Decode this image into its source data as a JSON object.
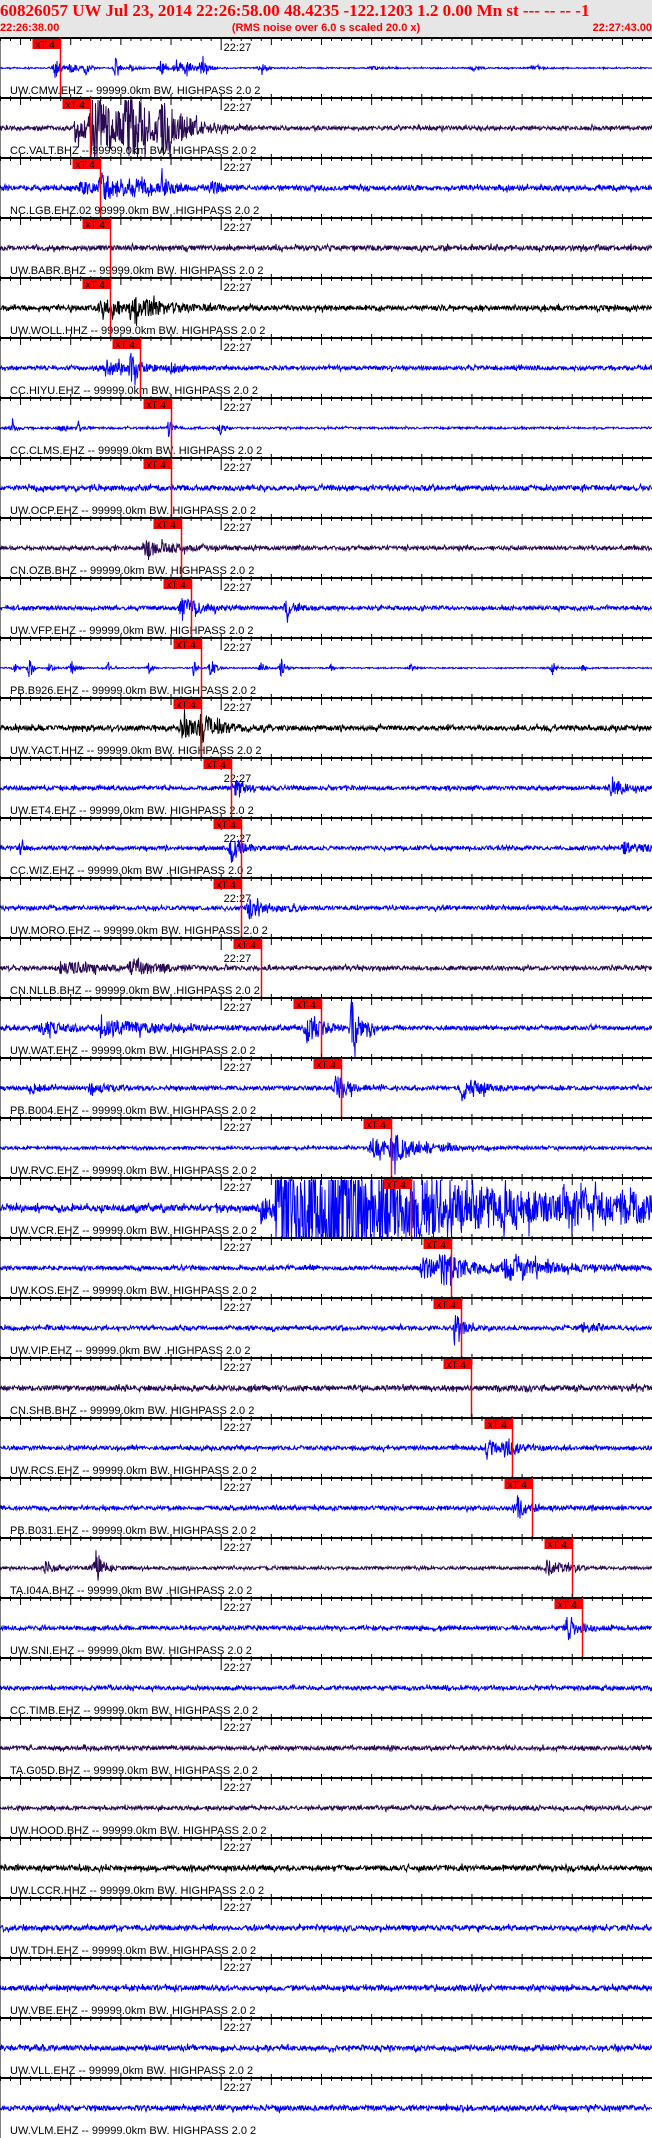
{
  "header": {
    "title": "60826057 UW Jul 23, 2014 22:26:58.00    48.4235 -122.1203  1.2 0.00 Mn st --- -- --  -1",
    "start_time": "22:26:38.00",
    "note": "(RMS noise over 6.0 s scaled 20.0 x)",
    "end_time": "22:27:43.00"
  },
  "chart_data": {
    "type": "line",
    "title": "",
    "x_range": [
      "22:26:38.00",
      "22:27:43.00"
    ],
    "x_tick_label": "22:27",
    "x_tick_time": "22:27:00",
    "pick_label": "xT 4",
    "colors": {
      "pick": "#ff0000",
      "blue": "#0000ff",
      "navy": "#2a0a55",
      "black": "#000000"
    },
    "traces": [
      {
        "label": "UW.CMW.EHZ -- 99999.0km BW. HIGHPASS  2.0  2",
        "color": "blue",
        "pick": "22:26:44",
        "noise": 0.6,
        "events": [
          [
            5.5,
            12,
            0.5
          ],
          [
            7,
            5,
            0.6
          ],
          [
            8.5,
            8,
            0.4
          ],
          [
            11.5,
            10,
            0.4
          ],
          [
            13,
            4,
            0.6
          ],
          [
            16,
            9,
            0.5
          ],
          [
            17.5,
            8,
            0.6
          ],
          [
            18.5,
            10,
            0.5
          ],
          [
            20,
            10,
            0.5
          ],
          [
            26,
            9,
            0.4
          ],
          [
            37,
            2,
            1
          ],
          [
            47,
            2,
            1
          ],
          [
            53,
            2,
            1
          ]
        ]
      },
      {
        "label": "CC.VALT.BHZ -- 99999.0km BW. HIGHPASS  2.0  2",
        "color": "navy",
        "pick": "22:26:47",
        "noise": 2,
        "events": [
          [
            7.5,
            14,
            2
          ],
          [
            9,
            34,
            3
          ],
          [
            12.5,
            34,
            2.5
          ],
          [
            16,
            20,
            2
          ]
        ]
      },
      {
        "label": "NC.LGB.EHZ.02 99999.0km BW .HIGHPASS  2.0  2",
        "color": "blue",
        "pick": "22:26:48",
        "noise": 2.5,
        "events": [
          [
            8,
            8,
            1
          ],
          [
            10,
            16,
            1.5
          ],
          [
            13,
            10,
            1
          ],
          [
            16,
            10,
            1.2
          ],
          [
            21,
            6,
            1
          ]
        ]
      },
      {
        "label": "UW.BABR.BHZ -- 99999.0km BW. HIGHPASS  2.0  2",
        "color": "navy",
        "pick": "22:26:49",
        "noise": 2.5,
        "events": []
      },
      {
        "label": "UW.WOLL.HHZ -- 99999.0km BW. HIGHPASS  2.0  2",
        "color": "black",
        "pick": "22:26:49",
        "noise": 2.5,
        "events": [
          [
            10,
            8,
            3
          ],
          [
            13,
            7,
            4
          ]
        ]
      },
      {
        "label": "CC.HIYU.EHZ -- 99999.0km BW. HIGHPASS  2.0  2",
        "color": "blue",
        "pick": "22:26:52",
        "noise": 2,
        "events": [
          [
            10.5,
            8,
            1.5
          ],
          [
            13,
            13,
            1
          ],
          [
            17,
            5,
            1
          ]
        ]
      },
      {
        "label": "CC.CLMS.EHZ -- 99999.0km BW. HIGHPASS  2.0  2",
        "color": "blue",
        "pick": "22:26:55",
        "noise": 1,
        "events": [
          [
            1.3,
            7,
            0.3
          ],
          [
            6,
            3,
            0.5
          ],
          [
            7.8,
            5,
            0.3
          ],
          [
            16.8,
            8,
            0.4
          ],
          [
            22,
            8,
            0.3
          ]
        ]
      },
      {
        "label": "UW.OCP.EHZ -- 99999.0km BW. HIGHPASS  2.0  2",
        "color": "blue",
        "pick": "22:26:55",
        "noise": 2.5,
        "events": []
      },
      {
        "label": "CN.OZB.BHZ -- 99999.0km BW. HIGHPASS  2.0  2",
        "color": "navy",
        "pick": "22:26:56",
        "noise": 2,
        "events": [
          [
            14.5,
            8,
            2.5
          ]
        ]
      },
      {
        "label": "UW.VFP.EHZ -- 99999.0km BW. HIGHPASS  2.0  2",
        "color": "blue",
        "pick": "22:26:57",
        "noise": 2,
        "events": [
          [
            18,
            13,
            1.5
          ],
          [
            28.5,
            9,
            0.8
          ]
        ]
      },
      {
        "label": "PB.B926.EHZ -- 99999.0km BW. HIGHPASS  2.0  2",
        "color": "blue",
        "pick": "22:26:58",
        "noise": 0.6,
        "events": [
          [
            1.4,
            6,
            0.3
          ],
          [
            2.9,
            10,
            0.3
          ],
          [
            4.9,
            5,
            0.3
          ],
          [
            7.1,
            10,
            0.3
          ],
          [
            10.8,
            6,
            0.3
          ],
          [
            14.8,
            7,
            0.3
          ],
          [
            19.3,
            9,
            0.3
          ],
          [
            21,
            12,
            0.4
          ],
          [
            26,
            8,
            0.3
          ],
          [
            28,
            10,
            0.4
          ],
          [
            33,
            4,
            0.3
          ],
          [
            41,
            5,
            0.3
          ],
          [
            55,
            8,
            0.4
          ],
          [
            58,
            4,
            0.3
          ]
        ]
      },
      {
        "label": "UW.YACT.HHZ -- 99999.0km BW. HIGHPASS  2.0  2",
        "color": "black",
        "pick": "22:26:58",
        "noise": 2.5,
        "events": [
          [
            18,
            10,
            2
          ],
          [
            20,
            12,
            1.5
          ]
        ]
      },
      {
        "label": "UW.ET4.EHZ -- 99999.0km BW. HIGHPASS  2.0  2",
        "color": "blue",
        "pick": "22:27:01",
        "noise": 2,
        "events": [
          [
            23.5,
            12,
            0.8
          ],
          [
            61,
            13,
            1
          ]
        ]
      },
      {
        "label": "CC.WIZ.EHZ -- 99999.0km BW .HIGHPASS  2.0  2",
        "color": "blue",
        "pick": "22:27:02",
        "noise": 2,
        "events": [
          [
            2,
            6,
            0.5
          ],
          [
            23,
            16,
            0.8
          ],
          [
            62,
            6,
            2
          ]
        ]
      },
      {
        "label": "UW.MORO.EHZ -- 99999.0km BW. HIGHPASS  2.0  2",
        "color": "blue",
        "pick": "22:27:02",
        "noise": 2,
        "events": [
          [
            24.8,
            12,
            1
          ],
          [
            29,
            6,
            0.5
          ]
        ]
      },
      {
        "label": "CN.NLLB.BHZ -- 99999.0km BW .HIGHPASS  2.0  2",
        "color": "navy",
        "pick": "22:27:04",
        "noise": 2,
        "events": [
          [
            6,
            6,
            4
          ],
          [
            13,
            6,
            3
          ]
        ]
      },
      {
        "label": "UW.WAT.EHZ -- 99999.0km BW. HIGHPASS  2.0  2",
        "color": "blue",
        "pick": "22:27:10",
        "noise": 2,
        "events": [
          [
            4,
            6,
            3
          ],
          [
            10,
            8,
            5
          ],
          [
            30.5,
            16,
            1.5
          ],
          [
            35,
            22,
            1
          ]
        ]
      },
      {
        "label": "PB.B004.EHZ -- 99999.0km BW. HIGHPASS  2.0  2",
        "color": "blue",
        "pick": "22:27:12",
        "noise": 2,
        "events": [
          [
            3,
            6,
            1
          ],
          [
            9,
            6,
            1.5
          ],
          [
            33.5,
            16,
            1
          ],
          [
            46,
            12,
            2
          ]
        ]
      },
      {
        "label": "UW.RVC.EHZ -- 99999.0km BW. HIGHPASS  2.0  2",
        "color": "blue",
        "pick": "22:27:17",
        "noise": 1.5,
        "events": [
          [
            37,
            10,
            2
          ],
          [
            39,
            12,
            3
          ]
        ]
      },
      {
        "label": "UW.VCR.EHZ -- 99999.0km BW. HIGHPASS  2.0  2",
        "color": "blue",
        "pick": "22:27:19",
        "noise": 3,
        "events": [
          [
            26,
            14,
            1
          ],
          [
            27.5,
            70,
            16
          ],
          [
            56,
            12,
            3
          ],
          [
            62,
            12,
            2
          ]
        ]
      },
      {
        "label": "UW.KOS.EHZ -- 99999.0km BW. HIGHPASS  2.0  2",
        "color": "blue",
        "pick": "22:27:23",
        "noise": 2,
        "events": [
          [
            42,
            10,
            3
          ],
          [
            44,
            15,
            2
          ],
          [
            50,
            8,
            6
          ]
        ]
      },
      {
        "label": "UW.VIP.EHZ -- 99999.0km BW .HIGHPASS  2.0  2",
        "color": "blue",
        "pick": "22:27:24",
        "noise": 2,
        "events": [
          [
            45.3,
            16,
            0.8
          ],
          [
            58,
            5,
            1
          ]
        ]
      },
      {
        "label": "CN.SHB.BHZ -- 99999.0km BW. HIGHPASS  2.0  2",
        "color": "navy",
        "pick": "22:27:25",
        "noise": 2.5,
        "events": []
      },
      {
        "label": "UW.RCS.EHZ -- 99999.0km BW. HIGHPASS  2.0  2",
        "color": "blue",
        "pick": "22:27:29",
        "noise": 2,
        "events": [
          [
            48.5,
            8,
            1.5
          ],
          [
            50.5,
            8,
            1
          ]
        ]
      },
      {
        "label": "PB.B031.EHZ -- 99999.0km BW. HIGHPASS  2.0  2",
        "color": "blue",
        "pick": "22:27:31",
        "noise": 2,
        "events": [
          [
            51.5,
            12,
            1
          ]
        ]
      },
      {
        "label": "TA.I04A.BHZ -- 99999.0km BW .HIGHPASS  2.0  2",
        "color": "navy",
        "pick": "22:27:35",
        "noise": 1.5,
        "events": [
          [
            4.5,
            6,
            1
          ],
          [
            9.5,
            16,
            0.8
          ],
          [
            54.5,
            8,
            1.5
          ]
        ]
      },
      {
        "label": "UW.SNI.EHZ -- 99999.0km BW. HIGHPASS  2.0  2",
        "color": "blue",
        "pick": "22:27:36",
        "noise": 2,
        "events": [
          [
            56.5,
            14,
            1.2
          ]
        ]
      },
      {
        "label": "CC.TIMB.EHZ -- 99999.0km BW. HIGHPASS  2.0  2",
        "color": "blue",
        "pick": "",
        "noise": 2,
        "events": []
      },
      {
        "label": "TA.G05D.BHZ -- 99999.0km BW. HIGHPASS  2.0  2",
        "color": "navy",
        "pick": "",
        "noise": 2,
        "events": []
      },
      {
        "label": "UW.HOOD.BHZ -- 99999.0km BW. HIGHPASS  2.0  2",
        "color": "navy",
        "pick": "",
        "noise": 2,
        "events": []
      },
      {
        "label": "UW.LCCR.HHZ -- 99999.0km BW. HIGHPASS  2.0  2",
        "color": "black",
        "pick": "",
        "noise": 2.5,
        "events": []
      },
      {
        "label": "UW.TDH.EHZ -- 99999.0km BW. HIGHPASS  2.0  2",
        "color": "blue",
        "pick": "",
        "noise": 2.5,
        "events": []
      },
      {
        "label": "UW.VBE.EHZ -- 99999.0km BW. HIGHPASS  2.0  2",
        "color": "blue",
        "pick": "",
        "noise": 2.5,
        "events": []
      },
      {
        "label": "UW.VLL.EHZ -- 99999.0km BW. HIGHPASS  2.0  2",
        "color": "blue",
        "pick": "",
        "noise": 2.5,
        "events": []
      },
      {
        "label": "UW.VLM.EHZ -- 99999.0km BW. HIGHPASS  2.0  2",
        "color": "blue",
        "pick": "",
        "noise": 2.5,
        "events": []
      }
    ]
  }
}
